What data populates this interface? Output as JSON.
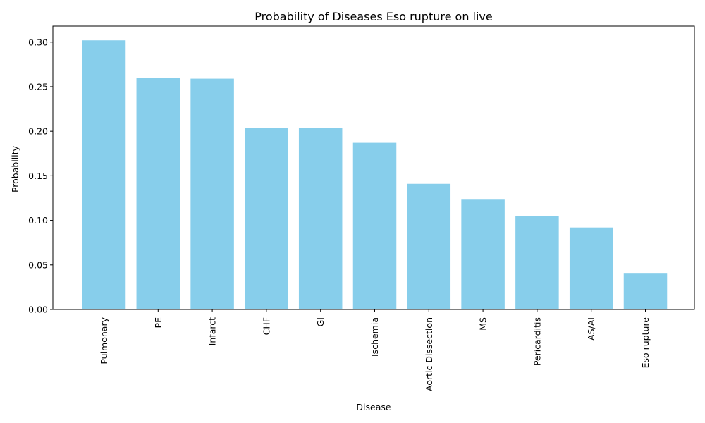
{
  "chart_data": {
    "type": "bar",
    "title": "Probability of Diseases Eso rupture on live",
    "xlabel": "Disease",
    "ylabel": "Probability",
    "categories": [
      "Pulmonary",
      "PE",
      "Infarct",
      "CHF",
      "GI",
      "Ischemia",
      "Aortic Dissection",
      "MS",
      "Pericarditis",
      "AS/AI",
      "Eso rupture"
    ],
    "values": [
      0.302,
      0.26,
      0.259,
      0.204,
      0.204,
      0.187,
      0.141,
      0.124,
      0.105,
      0.092,
      0.041
    ],
    "ylim": [
      0,
      0.318
    ],
    "yticks": [
      0.0,
      0.05,
      0.1,
      0.15,
      0.2,
      0.25,
      0.3
    ],
    "ytick_labels": [
      "0.00",
      "0.05",
      "0.10",
      "0.15",
      "0.20",
      "0.25",
      "0.30"
    ],
    "bar_color": "#87ceeb",
    "grid": false,
    "legend": "none"
  }
}
